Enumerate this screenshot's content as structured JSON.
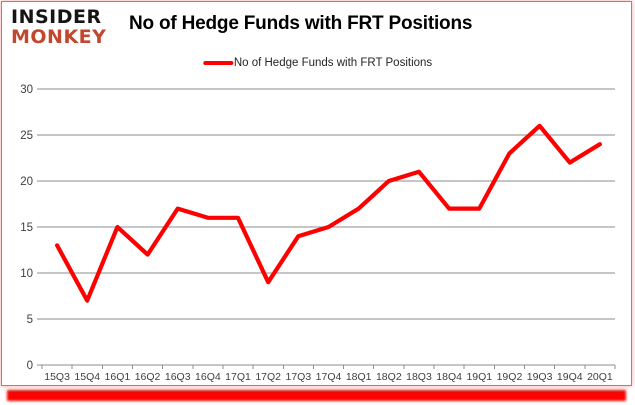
{
  "brand": {
    "line1": "INSIDER",
    "line2": "MONKEY"
  },
  "header": {
    "title": "No of Hedge Funds with FRT Positions"
  },
  "legend": {
    "label": "No of Hedge Funds with FRT Positions"
  },
  "colors": {
    "series_line": "#ff0000",
    "grid": "#8e8e8e",
    "axis_text": "#3f3f3f",
    "brand_black": "#151515",
    "brand_red": "#c2472f",
    "frame_bar_red": "#ff0000"
  },
  "chart_data": {
    "type": "line",
    "title": "No of Hedge Funds with FRT Positions",
    "categories": [
      "15Q3",
      "15Q4",
      "16Q1",
      "16Q2",
      "16Q3",
      "16Q4",
      "17Q1",
      "17Q2",
      "17Q3",
      "17Q4",
      "18Q1",
      "18Q2",
      "18Q3",
      "18Q4",
      "19Q1",
      "19Q2",
      "19Q3",
      "19Q4",
      "20Q1"
    ],
    "series": [
      {
        "name": "No of Hedge Funds with FRT Positions",
        "values": [
          13,
          7,
          15,
          12,
          17,
          16,
          16,
          9,
          14,
          15,
          17,
          20,
          21,
          17,
          17,
          23,
          26,
          22,
          24
        ]
      }
    ],
    "xlabel": "",
    "ylabel": "",
    "ylim": [
      0,
      30
    ],
    "ytick_step": 5,
    "grid": true,
    "legend_position": "top-center"
  }
}
